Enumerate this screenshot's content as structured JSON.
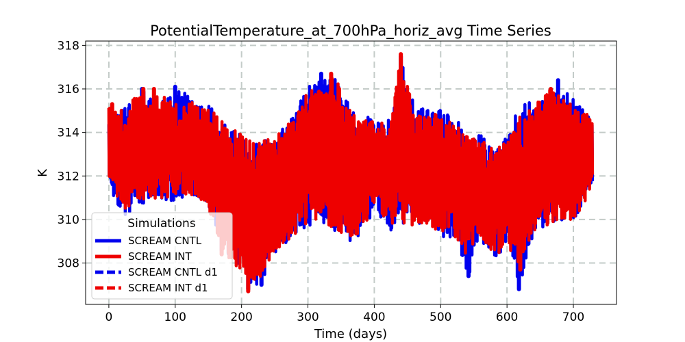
{
  "chart_data": {
    "type": "line",
    "title": "PotentialTemperature_at_700hPa_horiz_avg Time Series",
    "xlabel": "Time (days)",
    "ylabel": "K",
    "xlim": [
      -35,
      765
    ],
    "ylim": [
      306.1,
      318.2
    ],
    "xticks": [
      0,
      100,
      200,
      300,
      400,
      500,
      600,
      700
    ],
    "yticks": [
      308,
      310,
      312,
      314,
      316,
      318
    ],
    "grid": true,
    "legend": {
      "title": "Simulations",
      "location": "lower-left",
      "entries": [
        {
          "label": "SCREAM CNTL",
          "color": "#0000ee",
          "style": "solid"
        },
        {
          "label": "SCREAM INT",
          "color": "#ee0000",
          "style": "solid"
        },
        {
          "label": "SCREAM CNTL d1",
          "color": "#0000ee",
          "style": "dashed"
        },
        {
          "label": "SCREAM INT d1",
          "color": "#ee0000",
          "style": "dashed"
        }
      ]
    },
    "x_range_days": [
      0,
      729
    ],
    "series": [
      {
        "name": "SCREAM CNTL",
        "color": "#0000ee",
        "extremes": [
          {
            "x": 2,
            "y": 314.5
          },
          {
            "x": 50,
            "y": 316.0
          },
          {
            "x": 100,
            "y": 316.1
          },
          {
            "x": 170,
            "y": 308.6
          },
          {
            "x": 210,
            "y": 306.8
          },
          {
            "x": 230,
            "y": 307.0
          },
          {
            "x": 320,
            "y": 316.7
          },
          {
            "x": 440,
            "y": 317.5
          },
          {
            "x": 542,
            "y": 307.4
          },
          {
            "x": 618,
            "y": 306.8
          },
          {
            "x": 677,
            "y": 316.4
          },
          {
            "x": 722,
            "y": 314.7
          }
        ],
        "envelope": [
          {
            "x": 0,
            "min": 311.3,
            "max": 314.6
          },
          {
            "x": 25,
            "min": 310.2,
            "max": 315.2
          },
          {
            "x": 50,
            "min": 310.6,
            "max": 316.0
          },
          {
            "x": 75,
            "min": 311.0,
            "max": 315.3
          },
          {
            "x": 100,
            "min": 310.8,
            "max": 316.1
          },
          {
            "x": 125,
            "min": 311.2,
            "max": 315.6
          },
          {
            "x": 150,
            "min": 310.5,
            "max": 315.3
          },
          {
            "x": 175,
            "min": 308.5,
            "max": 314.5
          },
          {
            "x": 200,
            "min": 307.8,
            "max": 313.9
          },
          {
            "x": 215,
            "min": 306.8,
            "max": 313.7
          },
          {
            "x": 230,
            "min": 307.0,
            "max": 313.8
          },
          {
            "x": 250,
            "min": 308.4,
            "max": 313.7
          },
          {
            "x": 275,
            "min": 309.2,
            "max": 314.7
          },
          {
            "x": 300,
            "min": 309.6,
            "max": 316.2
          },
          {
            "x": 320,
            "min": 309.8,
            "max": 316.7
          },
          {
            "x": 340,
            "min": 309.5,
            "max": 316.6
          },
          {
            "x": 360,
            "min": 308.9,
            "max": 315.4
          },
          {
            "x": 380,
            "min": 309.2,
            "max": 314.7
          },
          {
            "x": 400,
            "min": 310.5,
            "max": 314.8
          },
          {
            "x": 425,
            "min": 309.5,
            "max": 314.7
          },
          {
            "x": 440,
            "min": 309.8,
            "max": 317.5
          },
          {
            "x": 460,
            "min": 309.6,
            "max": 315.3
          },
          {
            "x": 480,
            "min": 309.7,
            "max": 315.1
          },
          {
            "x": 500,
            "min": 309.2,
            "max": 315.1
          },
          {
            "x": 520,
            "min": 309.2,
            "max": 314.7
          },
          {
            "x": 542,
            "min": 307.4,
            "max": 314.1
          },
          {
            "x": 560,
            "min": 309.0,
            "max": 314.0
          },
          {
            "x": 580,
            "min": 308.1,
            "max": 313.2
          },
          {
            "x": 600,
            "min": 308.8,
            "max": 313.8
          },
          {
            "x": 618,
            "min": 306.8,
            "max": 315.2
          },
          {
            "x": 640,
            "min": 309.4,
            "max": 315.5
          },
          {
            "x": 660,
            "min": 309.7,
            "max": 315.6
          },
          {
            "x": 677,
            "min": 310.0,
            "max": 316.4
          },
          {
            "x": 700,
            "min": 309.8,
            "max": 315.5
          },
          {
            "x": 729,
            "min": 311.3,
            "max": 314.7
          }
        ]
      },
      {
        "name": "SCREAM INT",
        "color": "#ee0000",
        "extremes": [
          {
            "x": 5,
            "y": 315.3
          },
          {
            "x": 52,
            "y": 316.0
          },
          {
            "x": 68,
            "y": 316.0
          },
          {
            "x": 170,
            "y": 308.4
          },
          {
            "x": 210,
            "y": 306.7
          },
          {
            "x": 335,
            "y": 316.7
          },
          {
            "x": 440,
            "y": 317.6
          },
          {
            "x": 620,
            "y": 307.7
          },
          {
            "x": 666,
            "y": 316.0
          }
        ],
        "envelope": [
          {
            "x": 0,
            "min": 311.5,
            "max": 315.3
          },
          {
            "x": 25,
            "min": 310.4,
            "max": 315.1
          },
          {
            "x": 50,
            "min": 310.8,
            "max": 316.0
          },
          {
            "x": 75,
            "min": 311.0,
            "max": 315.8
          },
          {
            "x": 100,
            "min": 311.0,
            "max": 315.3
          },
          {
            "x": 125,
            "min": 311.1,
            "max": 315.4
          },
          {
            "x": 150,
            "min": 310.4,
            "max": 315.1
          },
          {
            "x": 175,
            "min": 308.4,
            "max": 314.6
          },
          {
            "x": 200,
            "min": 307.5,
            "max": 313.9
          },
          {
            "x": 215,
            "min": 306.7,
            "max": 313.6
          },
          {
            "x": 230,
            "min": 307.4,
            "max": 313.6
          },
          {
            "x": 250,
            "min": 308.5,
            "max": 313.8
          },
          {
            "x": 275,
            "min": 309.2,
            "max": 314.6
          },
          {
            "x": 300,
            "min": 309.7,
            "max": 315.9
          },
          {
            "x": 320,
            "min": 309.9,
            "max": 316.3
          },
          {
            "x": 340,
            "min": 309.6,
            "max": 316.7
          },
          {
            "x": 360,
            "min": 309.2,
            "max": 315.2
          },
          {
            "x": 380,
            "min": 309.4,
            "max": 314.6
          },
          {
            "x": 400,
            "min": 310.6,
            "max": 314.6
          },
          {
            "x": 425,
            "min": 309.6,
            "max": 314.5
          },
          {
            "x": 440,
            "min": 309.8,
            "max": 317.6
          },
          {
            "x": 460,
            "min": 309.7,
            "max": 315.0
          },
          {
            "x": 480,
            "min": 309.8,
            "max": 314.9
          },
          {
            "x": 500,
            "min": 309.3,
            "max": 314.9
          },
          {
            "x": 520,
            "min": 309.3,
            "max": 314.5
          },
          {
            "x": 542,
            "min": 308.0,
            "max": 313.9
          },
          {
            "x": 560,
            "min": 309.1,
            "max": 313.9
          },
          {
            "x": 580,
            "min": 308.2,
            "max": 313.2
          },
          {
            "x": 600,
            "min": 308.9,
            "max": 313.7
          },
          {
            "x": 620,
            "min": 307.7,
            "max": 314.8
          },
          {
            "x": 640,
            "min": 309.5,
            "max": 315.2
          },
          {
            "x": 666,
            "min": 309.8,
            "max": 316.0
          },
          {
            "x": 680,
            "min": 310.0,
            "max": 315.7
          },
          {
            "x": 700,
            "min": 309.9,
            "max": 315.2
          },
          {
            "x": 729,
            "min": 311.4,
            "max": 314.8
          }
        ]
      }
    ]
  }
}
